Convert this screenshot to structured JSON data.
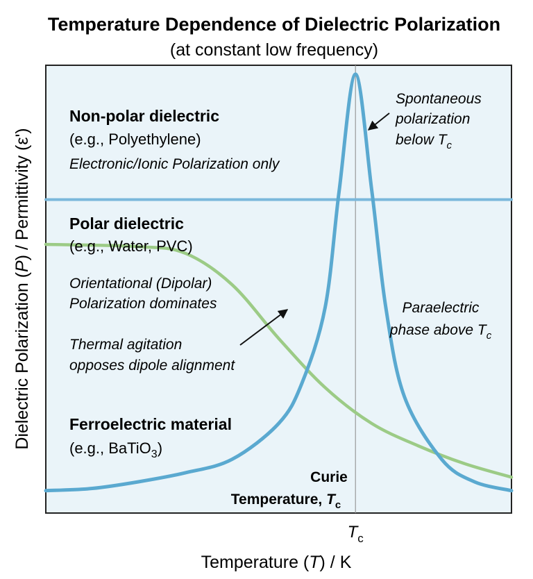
{
  "title": "Temperature Dependence of Dielectric Polarization",
  "subtitle": "(at constant low frequency)",
  "colors": {
    "plot_background": "#eaf4f9",
    "ferroelectric_curve": "#5aa9d0",
    "nonpolar_line": "#7ab8db",
    "polar_curve": "#9ccb86",
    "annotation": "#111111"
  },
  "chart_data": {
    "type": "line",
    "xlabel": {
      "pre": "Temperature (",
      "sym": "T",
      "post": ") / K"
    },
    "ylabel": {
      "pre": "Dielectric Polarization (",
      "sym": "P",
      "post": ") / Permittivity (ε')"
    },
    "x_ticks": [
      {
        "base": "T",
        "sub": "c",
        "x": 0.665
      }
    ],
    "x_range": [
      0,
      1
    ],
    "y_range": [
      0,
      1
    ],
    "grid": false,
    "series": [
      {
        "key": "nonpolar",
        "x": [
          0,
          1
        ],
        "y": [
          0.7,
          0.7
        ]
      },
      {
        "key": "polar",
        "x": [
          0,
          0.2,
          0.3,
          0.4,
          0.5,
          0.6,
          0.7,
          0.8,
          0.9,
          1.0
        ],
        "y": [
          0.6,
          0.595,
          0.58,
          0.51,
          0.39,
          0.28,
          0.2,
          0.15,
          0.11,
          0.08
        ]
      },
      {
        "key": "ferroelectric",
        "x": [
          0,
          0.1,
          0.2,
          0.3,
          0.4,
          0.5,
          0.55,
          0.6,
          0.63,
          0.665,
          0.7,
          0.73,
          0.77,
          0.85,
          0.92,
          1.0
        ],
        "y": [
          0.05,
          0.055,
          0.07,
          0.09,
          0.12,
          0.2,
          0.29,
          0.46,
          0.72,
          0.98,
          0.72,
          0.46,
          0.26,
          0.12,
          0.07,
          0.05
        ]
      }
    ],
    "annotations": {
      "nonpolar": {
        "name": "Non-polar dielectric",
        "example": "(e.g., Polyethylene)",
        "note": "Electronic/Ionic Polarization only"
      },
      "polar": {
        "name": "Polar dielectric",
        "example": "(e.g., Water, PVC)",
        "note_line1": "Orientational (Dipolar)",
        "note_line2": "Polarization dominates",
        "agitation_line1": "Thermal agitation",
        "agitation_line2": "opposes dipole alignment"
      },
      "ferroelectric": {
        "name": "Ferroelectric material",
        "example_pre": "(e.g., BaTiO",
        "example_sub": "3",
        "example_post": ")"
      },
      "spontaneous": {
        "line1": "Spontaneous",
        "line2": "polarization",
        "line3_pre": "below ",
        "sym": "T",
        "sub": "c"
      },
      "paraelectric": {
        "line1": "Paraelectric",
        "line2_pre": "phase above ",
        "sym": "T",
        "sub": "c"
      },
      "curie": {
        "line1": "Curie",
        "line2_pre": "Temperature, ",
        "sym": "T",
        "sub": "c"
      }
    }
  }
}
